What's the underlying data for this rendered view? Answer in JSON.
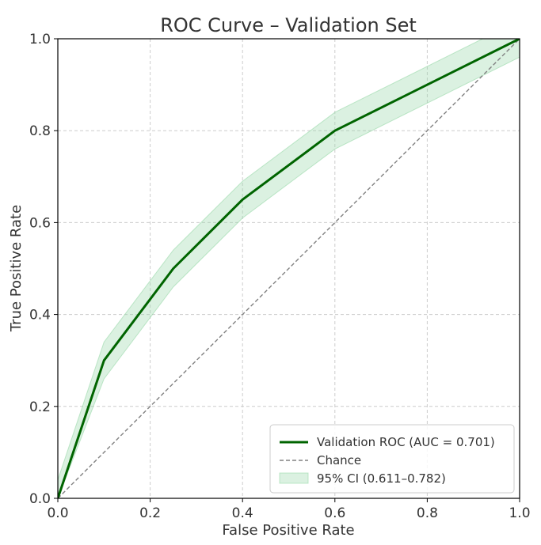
{
  "chart_data": {
    "type": "line",
    "title": "ROC Curve – Validation Set",
    "xlabel": "False Positive Rate",
    "ylabel": "True Positive Rate",
    "xlim": [
      0.0,
      1.0
    ],
    "ylim": [
      0.0,
      1.0
    ],
    "xticks": [
      "0.0",
      "0.2",
      "0.4",
      "0.6",
      "0.8",
      "1.0"
    ],
    "yticks": [
      "0.0",
      "0.2",
      "0.4",
      "0.6",
      "0.8",
      "1.0"
    ],
    "grid": true,
    "legend_position": "bottom-right",
    "series": [
      {
        "name": "Validation ROC (AUC = 0.701)",
        "style": "solid",
        "color": "#006400",
        "x": [
          0.0,
          0.1,
          0.25,
          0.4,
          0.6,
          1.0
        ],
        "y": [
          0.0,
          0.3,
          0.5,
          0.65,
          0.8,
          1.0
        ]
      },
      {
        "name": "Chance",
        "style": "dashed",
        "color": "#808080",
        "x": [
          0.0,
          1.0
        ],
        "y": [
          0.0,
          1.0
        ]
      }
    ],
    "band": {
      "name": "95% CI (0.611–0.782)",
      "color": "#98d8a8",
      "x": [
        0.0,
        0.1,
        0.25,
        0.4,
        0.6,
        1.0
      ],
      "lower": [
        0.0,
        0.26,
        0.46,
        0.61,
        0.76,
        0.96
      ],
      "upper": [
        0.04,
        0.34,
        0.54,
        0.69,
        0.84,
        1.04
      ]
    }
  }
}
